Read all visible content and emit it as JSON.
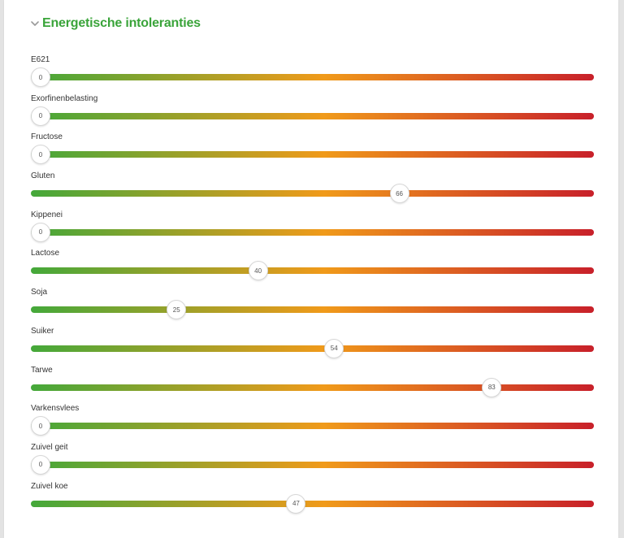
{
  "section": {
    "title": "Energetische intoleranties",
    "icon": "chevron-down-icon",
    "title_color": "#3aa43a"
  },
  "gradient": {
    "start": "#44a83a",
    "middle": "#f09a1a",
    "end": "#c8202a"
  },
  "slider_range": [
    0,
    100
  ],
  "sliders": [
    {
      "label": "E621",
      "value": 0
    },
    {
      "label": "Exorfinenbelasting",
      "value": 0
    },
    {
      "label": "Fructose",
      "value": 0
    },
    {
      "label": "Gluten",
      "value": 66
    },
    {
      "label": "Kippenei",
      "value": 0
    },
    {
      "label": "Lactose",
      "value": 40
    },
    {
      "label": "Soja",
      "value": 25
    },
    {
      "label": "Suiker",
      "value": 54
    },
    {
      "label": "Tarwe",
      "value": 83
    },
    {
      "label": "Varkensvlees",
      "value": 0
    },
    {
      "label": "Zuivel geit",
      "value": 0
    },
    {
      "label": "Zuivel koe",
      "value": 47
    }
  ]
}
